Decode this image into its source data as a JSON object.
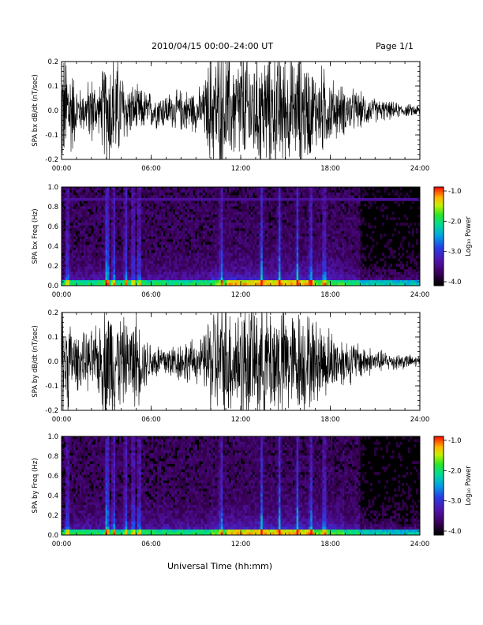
{
  "header": {
    "title": "2010/04/15  00:00–24:00 UT",
    "page": "Page 1/1"
  },
  "x_axis_label": "Universal Time (hh:mm)",
  "colorbar": {
    "label": "Log₁₀ Power",
    "ticks": [
      "-1.0",
      "-2.0",
      "-3.0",
      "-4.0"
    ],
    "range": [
      -4.0,
      -1.0
    ]
  },
  "chart_data": [
    {
      "type": "line",
      "ylabel": "SPA bx dB/dt (nT/sec)",
      "ylim": [
        -0.2,
        0.2
      ],
      "yticks": [
        "0.2",
        "0.1",
        "0.0",
        "-0.1",
        "-0.2"
      ],
      "xlim_hours": [
        0,
        24
      ],
      "xticks": [
        "00:00",
        "06:00",
        "12:00",
        "18:00",
        "24:00"
      ],
      "x_hours": [
        0,
        0.5,
        1,
        1.5,
        2,
        2.5,
        3,
        3.5,
        4,
        4.5,
        5,
        5.5,
        6,
        6.5,
        7,
        7.5,
        8,
        8.5,
        9,
        9.5,
        10,
        10.5,
        11,
        11.5,
        12,
        12.5,
        13,
        13.5,
        14,
        14.5,
        15,
        15.5,
        16,
        16.5,
        17,
        17.5,
        18,
        18.5,
        19,
        19.5,
        20,
        20.5,
        21,
        21.5,
        22,
        22.5,
        23,
        23.5,
        24
      ],
      "amplitude": [
        0.2,
        0.2,
        0.08,
        0.07,
        0.12,
        0.07,
        0.2,
        0.2,
        0.14,
        0.09,
        0.08,
        0.07,
        0.06,
        0.06,
        0.06,
        0.06,
        0.07,
        0.07,
        0.07,
        0.08,
        0.2,
        0.2,
        0.2,
        0.17,
        0.2,
        0.2,
        0.19,
        0.2,
        0.2,
        0.2,
        0.2,
        0.16,
        0.2,
        0.17,
        0.13,
        0.15,
        0.11,
        0.09,
        0.08,
        0.07,
        0.06,
        0.05,
        0.04,
        0.035,
        0.03,
        0.025,
        0.02,
        0.02,
        0.02
      ]
    },
    {
      "type": "heatmap",
      "ylabel": "SPA bx Freq (Hz)",
      "ylim": [
        0.0,
        1.0
      ],
      "yticks": [
        "1.0",
        "0.8",
        "0.6",
        "0.4",
        "0.2",
        "0.0"
      ],
      "xlim_hours": [
        0,
        24
      ],
      "xticks": [
        "00:00",
        "06:00",
        "12:00",
        "18:00",
        "24:00"
      ],
      "bright_hours": [
        0.4,
        3.0,
        3.1,
        3.5,
        4.3,
        4.8,
        5.2,
        10.7,
        13.4,
        14.6,
        15.8,
        16.7,
        17.6
      ],
      "line_freq_hz": 0.87
    },
    {
      "type": "line",
      "ylabel": "SPA by dB/dt (nT/sec)",
      "ylim": [
        -0.2,
        0.2
      ],
      "yticks": [
        "0.2",
        "0.1",
        "0.0",
        "-0.1",
        "-0.2"
      ],
      "xlim_hours": [
        0,
        24
      ],
      "xticks": [
        "00:00",
        "06:00",
        "12:00",
        "18:00",
        "24:00"
      ],
      "x_hours": [
        0,
        0.5,
        1,
        1.5,
        2,
        2.5,
        3,
        3.5,
        4,
        4.5,
        5,
        5.5,
        6,
        6.5,
        7,
        7.5,
        8,
        8.5,
        9,
        9.5,
        10,
        10.5,
        11,
        11.5,
        12,
        12.5,
        13,
        13.5,
        14,
        14.5,
        15,
        15.5,
        16,
        16.5,
        17,
        17.5,
        18,
        18.5,
        19,
        19.5,
        20,
        20.5,
        21,
        21.5,
        22,
        22.5,
        23,
        23.5,
        24
      ],
      "amplitude": [
        0.2,
        0.15,
        0.09,
        0.09,
        0.1,
        0.12,
        0.2,
        0.2,
        0.15,
        0.12,
        0.16,
        0.09,
        0.07,
        0.06,
        0.06,
        0.06,
        0.07,
        0.07,
        0.07,
        0.08,
        0.19,
        0.2,
        0.2,
        0.18,
        0.2,
        0.2,
        0.2,
        0.2,
        0.2,
        0.2,
        0.2,
        0.16,
        0.18,
        0.16,
        0.14,
        0.13,
        0.11,
        0.09,
        0.08,
        0.07,
        0.06,
        0.05,
        0.04,
        0.035,
        0.03,
        0.03,
        0.025,
        0.02,
        0.02
      ]
    },
    {
      "type": "heatmap",
      "ylabel": "SPA by Freq (Hz)",
      "ylim": [
        0.0,
        1.0
      ],
      "yticks": [
        "1.0",
        "0.8",
        "0.6",
        "0.4",
        "0.2",
        "0.0"
      ],
      "xlim_hours": [
        0,
        24
      ],
      "xticks": [
        "00:00",
        "06:00",
        "12:00",
        "18:00",
        "24:00"
      ],
      "bright_hours": [
        0.4,
        3.0,
        3.1,
        3.5,
        4.3,
        4.8,
        5.2,
        10.7,
        13.4,
        14.6,
        15.8,
        16.7,
        17.6
      ],
      "line_freq_hz": null
    }
  ]
}
